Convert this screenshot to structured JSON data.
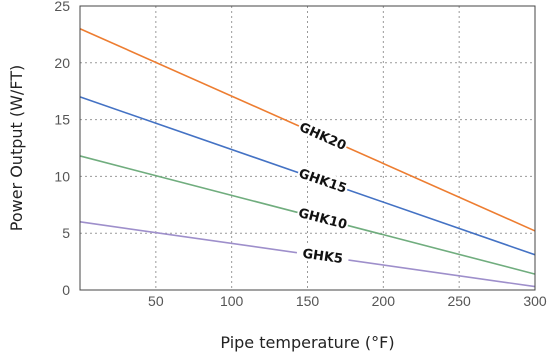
{
  "chart_data": {
    "type": "line",
    "xlabel": "Pipe temperature (°F)",
    "ylabel": "Power Output (W/FT)",
    "xlim": [
      0,
      300
    ],
    "ylim": [
      0,
      25
    ],
    "x_ticks": [
      50,
      100,
      150,
      200,
      250,
      300
    ],
    "y_ticks": [
      0,
      5,
      10,
      15,
      20,
      25
    ],
    "grid": true,
    "series": [
      {
        "name": "GHK20",
        "color": "#ED7D31",
        "x": [
          0,
          300
        ],
        "y": [
          23.0,
          5.2
        ]
      },
      {
        "name": "GHK15",
        "color": "#4472C4",
        "x": [
          0,
          300
        ],
        "y": [
          17.0,
          3.1
        ]
      },
      {
        "name": "GHK10",
        "color": "#70AD7E",
        "x": [
          0,
          300
        ],
        "y": [
          11.8,
          1.4
        ]
      },
      {
        "name": "GHK5",
        "color": "#9E8FCB",
        "x": [
          0,
          300
        ],
        "y": [
          6.0,
          0.3
        ]
      }
    ]
  }
}
